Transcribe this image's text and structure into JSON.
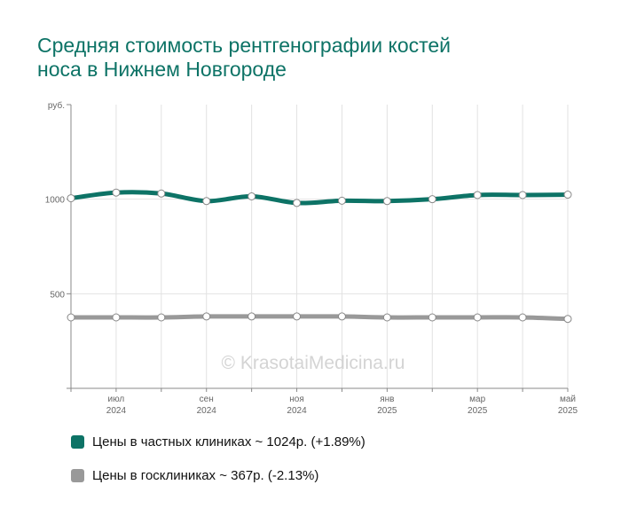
{
  "title_line1": "Средняя стоимость рентгенографии костей",
  "title_line2": "носа в Нижнем Новгороде",
  "watermark": "© KrasotaiMedicina.ru",
  "chart_data": {
    "type": "line",
    "ylabel": "руб.",
    "ylim": [
      0,
      1500
    ],
    "yticks": [
      500,
      1000
    ],
    "x": [
      "2024-06",
      "2024-07",
      "2024-08",
      "2024-09",
      "2024-10",
      "2024-11",
      "2024-12",
      "2025-01",
      "2025-02",
      "2025-03",
      "2025-04",
      "2025-05"
    ],
    "xtick_labels": [
      {
        "month": "июл",
        "year": "2024",
        "index": 1
      },
      {
        "month": "сен",
        "year": "2024",
        "index": 3
      },
      {
        "month": "ноя",
        "year": "2024",
        "index": 5
      },
      {
        "month": "янв",
        "year": "2025",
        "index": 7
      },
      {
        "month": "мар",
        "year": "2025",
        "index": 9
      },
      {
        "month": "май",
        "year": "2025",
        "index": 11
      }
    ],
    "grid": true,
    "legend_position": "bottom-left",
    "series": [
      {
        "name": "Цены в частных клиниках ~ 1024р. (+1.89%)",
        "color": "#0d7366",
        "values": [
          1005,
          1035,
          1030,
          990,
          1015,
          980,
          992,
          990,
          1000,
          1022,
          1022,
          1024
        ]
      },
      {
        "name": "Цены в госклиниках ~ 367р. (-2.13%)",
        "color": "#999999",
        "values": [
          375,
          375,
          375,
          380,
          380,
          380,
          380,
          375,
          375,
          375,
          375,
          367
        ]
      }
    ]
  }
}
